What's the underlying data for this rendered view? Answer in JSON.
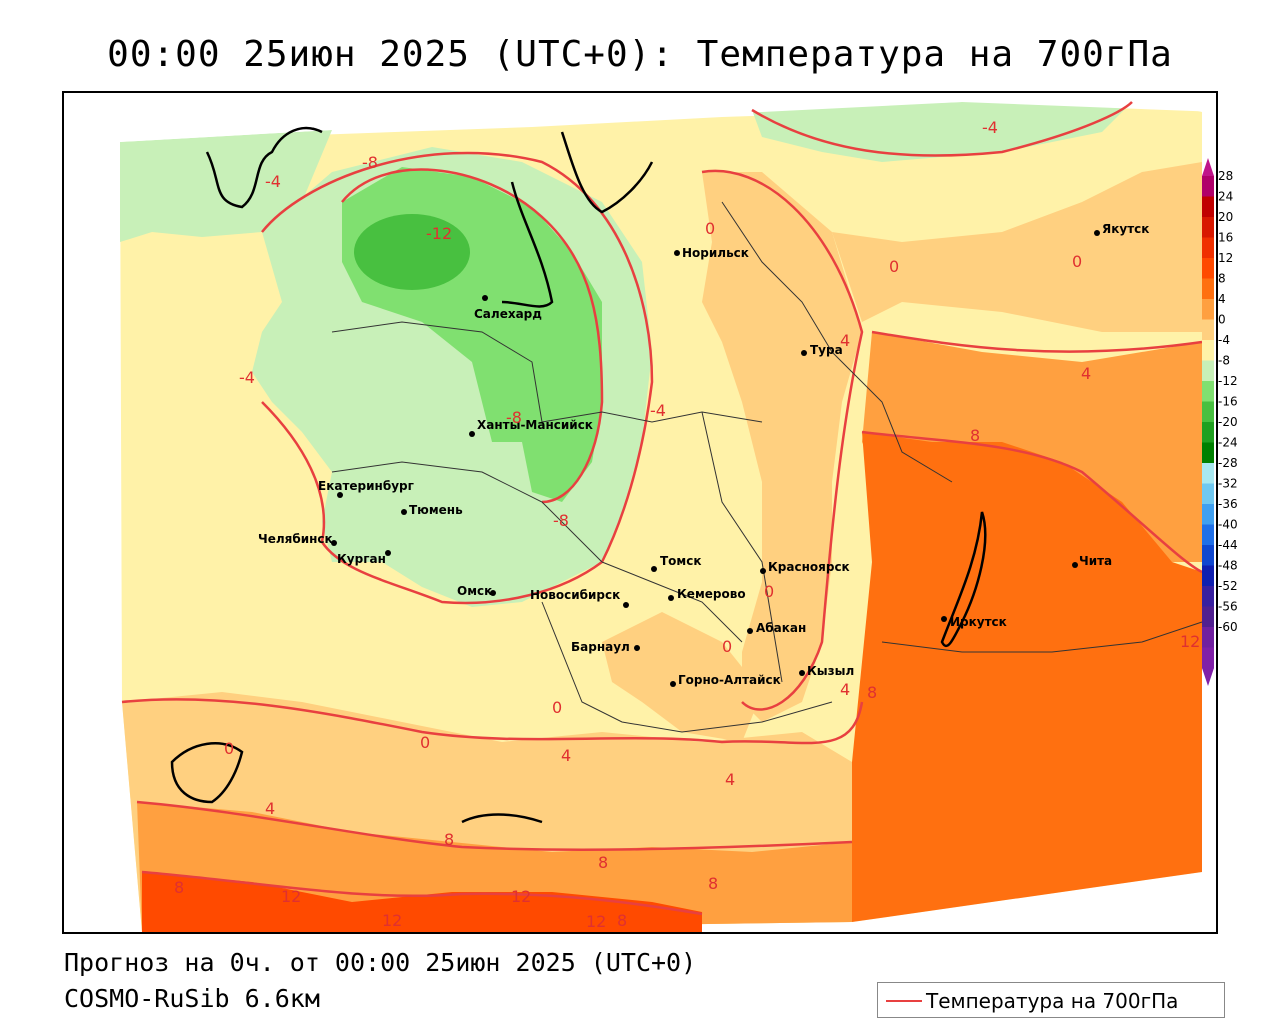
{
  "header": {
    "title": "00:00 25июн 2025 (UTC+0): Температура на 700гПа"
  },
  "footer": {
    "forecast_line": "Прогноз на 0ч. от 00:00 25июн 2025 (UTC+0)",
    "model_line": "COSMO-RuSib 6.6км"
  },
  "legend": {
    "label": "Температура на 700гПа",
    "line_color": "#e84040"
  },
  "colorbar": {
    "labels": [
      "28",
      "24",
      "20",
      "16",
      "12",
      "8",
      "4",
      "0",
      "-4",
      "-8",
      "-12",
      "-16",
      "-20",
      "-24",
      "-28",
      "-32",
      "-36",
      "-40",
      "-44",
      "-48",
      "-52",
      "-56",
      "-60"
    ],
    "colors": [
      "#b0006a",
      "#c00000",
      "#d81800",
      "#f03000",
      "#ff4a00",
      "#ff7010",
      "#ffa040",
      "#ffd080",
      "#fff2a8",
      "#c8f0b8",
      "#80e070",
      "#48c040",
      "#20a020",
      "#008000",
      "#a8e8f0",
      "#70c8f0",
      "#40a0f0",
      "#2070e8",
      "#1048d0",
      "#1020b0",
      "#3820a0",
      "#502090",
      "#7020a0",
      "#8020a8"
    ]
  },
  "cities": [
    {
      "name": "Норильск"
    },
    {
      "name": "Якутск"
    },
    {
      "name": "Салехард"
    },
    {
      "name": "Тура"
    },
    {
      "name": "Ханты-Мансийск"
    },
    {
      "name": "Екатеринбург"
    },
    {
      "name": "Тюмень"
    },
    {
      "name": "Челябинск"
    },
    {
      "name": "Курган"
    },
    {
      "name": "Омск"
    },
    {
      "name": "Новосибирск"
    },
    {
      "name": "Томск"
    },
    {
      "name": "Кемерово"
    },
    {
      "name": "Красноярск"
    },
    {
      "name": "Барнаул"
    },
    {
      "name": "Абакан"
    },
    {
      "name": "Горно-Алтайск"
    },
    {
      "name": "Кызыл"
    },
    {
      "name": "Иркутск"
    },
    {
      "name": "Чита"
    }
  ],
  "contour_labels": [
    "-4",
    "-8",
    "-12",
    "0",
    "4",
    "8",
    "12"
  ]
}
